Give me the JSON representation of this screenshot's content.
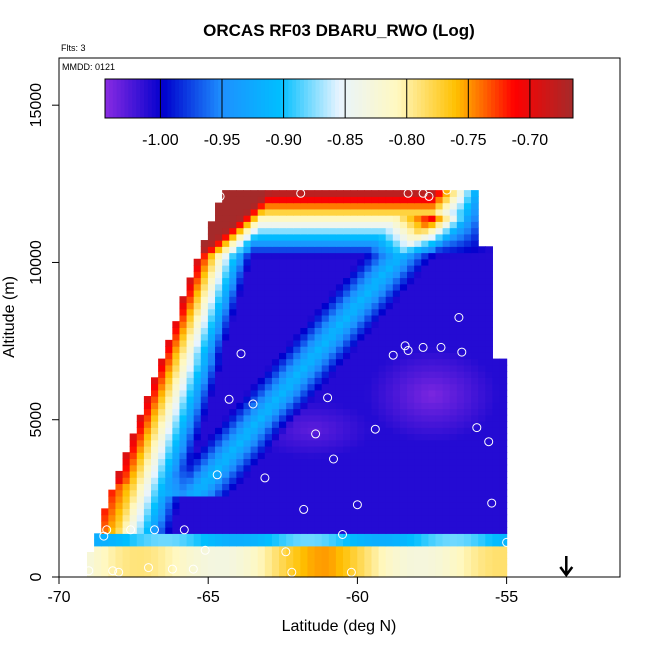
{
  "chart_data": {
    "type": "heatmap",
    "title": "ORCAS RF03 DBARU_RWO (Log)",
    "subtitle_flts": "Flts: 3",
    "subtitle_mmdd": "MMDD: 0121",
    "xlabel": "Latitude (deg N)",
    "ylabel": "Altitude (m)",
    "xlim": [
      -70,
      -51.2
    ],
    "ylim": [
      0,
      16500
    ],
    "x_ticks": [
      -70,
      -65,
      -60,
      -55
    ],
    "x_tick_labels": [
      "-70",
      "-65",
      "-60",
      "-55"
    ],
    "y_ticks": [
      0,
      5000,
      10000,
      15000
    ],
    "y_tick_labels": [
      "0",
      "5000",
      "10000",
      "15000"
    ],
    "colorbar": {
      "range": [
        -1.045,
        -0.665
      ],
      "ticks": [
        -1.0,
        -0.95,
        -0.9,
        -0.85,
        -0.8,
        -0.75,
        -0.7
      ],
      "tick_labels": [
        "-1.00",
        "-0.95",
        "-0.90",
        "-0.85",
        "-0.80",
        "-0.75",
        "-0.70"
      ],
      "colors": [
        "#8a2be2",
        "#0000cd",
        "#1e90ff",
        "#00bfff",
        "#e8f4ff",
        "#fff8c0",
        "#ffc000",
        "#ff0000",
        "#a52a2a"
      ]
    },
    "marker": {
      "x": -53,
      "label": "arrow"
    },
    "profile_points": [
      [
        -69,
        200
      ],
      [
        -68,
        150
      ],
      [
        -67,
        300
      ],
      [
        -66.2,
        250
      ],
      [
        -65.5,
        250
      ],
      [
        -68.5,
        1300
      ],
      [
        -68.4,
        1500
      ],
      [
        -67.6,
        1500
      ],
      [
        -66.8,
        1500
      ],
      [
        -65.8,
        1500
      ],
      [
        -65.1,
        850
      ],
      [
        -62.4,
        800
      ],
      [
        -62.2,
        150
      ],
      [
        -60.2,
        150
      ],
      [
        -60.5,
        1350
      ],
      [
        -64.7,
        3250
      ],
      [
        -63.1,
        3150
      ],
      [
        -61.8,
        2150
      ],
      [
        -60,
        2300
      ],
      [
        -60.8,
        3750
      ],
      [
        -61.4,
        4550
      ],
      [
        -59.4,
        4700
      ],
      [
        -64.3,
        5650
      ],
      [
        -63.5,
        5500
      ],
      [
        -61,
        5700
      ],
      [
        -63.9,
        7100
      ],
      [
        -58.8,
        7050
      ],
      [
        -58.4,
        7350
      ],
      [
        -58.3,
        7200
      ],
      [
        -57.8,
        7300
      ],
      [
        -57.2,
        7300
      ],
      [
        -56.5,
        7150
      ],
      [
        -56.6,
        8250
      ],
      [
        -56.0,
        4750
      ],
      [
        -55.6,
        4300
      ],
      [
        -55.5,
        2350
      ],
      [
        -64.6,
        12100
      ],
      [
        -61.9,
        12200
      ],
      [
        -58.3,
        12200
      ],
      [
        -57.8,
        12200
      ],
      [
        -57.6,
        12100
      ],
      [
        -57.0,
        12300
      ],
      [
        -56.0,
        12500
      ],
      [
        -55.0,
        1100
      ],
      [
        -68.2,
        200
      ]
    ]
  }
}
